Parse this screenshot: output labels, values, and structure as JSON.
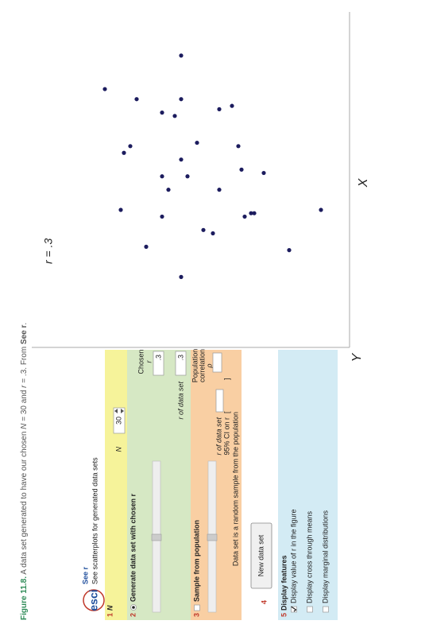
{
  "caption": {
    "label": "Figure 11.8.",
    "runs": [
      "A data set generated to have our chosen ",
      "N",
      " = 30 and ",
      "r",
      " = .3. From ",
      "See r",
      "."
    ]
  },
  "header": {
    "logo": "esci",
    "title": "See r",
    "subtitle": "See scatterplots for generated data sets"
  },
  "panel": {
    "section1": {
      "number": "1",
      "label": "N",
      "field_label": "N",
      "n": 30
    },
    "section2": {
      "number": "2",
      "label": "Generate data set with chosen r",
      "selected": true,
      "chosen_label": "Chosen",
      "chosen_symbol": "r",
      "chosen_value": ".3",
      "r_label": "r of data set",
      "r_value": ".3"
    },
    "section3": {
      "number": "3",
      "label": "Sample from population",
      "checked": false,
      "pop_label": "Population",
      "pop_label2": "correlation",
      "rho": "ρ",
      "r_label": "r of data set",
      "ci_label": "95% CI on r",
      "ci_open": "[",
      "ci_close": "]",
      "note": "Data set is a random sample from the population"
    },
    "section4": {
      "number": "4",
      "button": "New data set"
    },
    "section5": {
      "number": "5",
      "label": "Display features",
      "options": [
        {
          "label": "Display value of r in the figure",
          "checked": true
        },
        {
          "label": "Display cross through means",
          "checked": false
        },
        {
          "label": "Display marginal distributions",
          "checked": false
        }
      ]
    }
  },
  "plot": {
    "annotation": "r = .3",
    "x_label": "X",
    "y_label": "Y",
    "xlim": [
      0,
      100
    ],
    "ylim": [
      0,
      100
    ],
    "points": {
      "x": [
        87,
        77,
        74,
        70,
        69,
        74,
        71,
        72,
        61,
        58,
        60,
        56,
        60,
        51,
        47,
        51,
        53,
        52,
        47,
        41,
        39,
        39,
        40,
        40,
        41,
        35,
        34,
        30,
        21,
        29
      ],
      "y": [
        53,
        77,
        67,
        59,
        55,
        53,
        41,
        37,
        48,
        71,
        69,
        53,
        35,
        59,
        57,
        51,
        34,
        27,
        41,
        72,
        59,
        33,
        31,
        30,
        9,
        46,
        43,
        64,
        53,
        19
      ]
    }
  }
}
